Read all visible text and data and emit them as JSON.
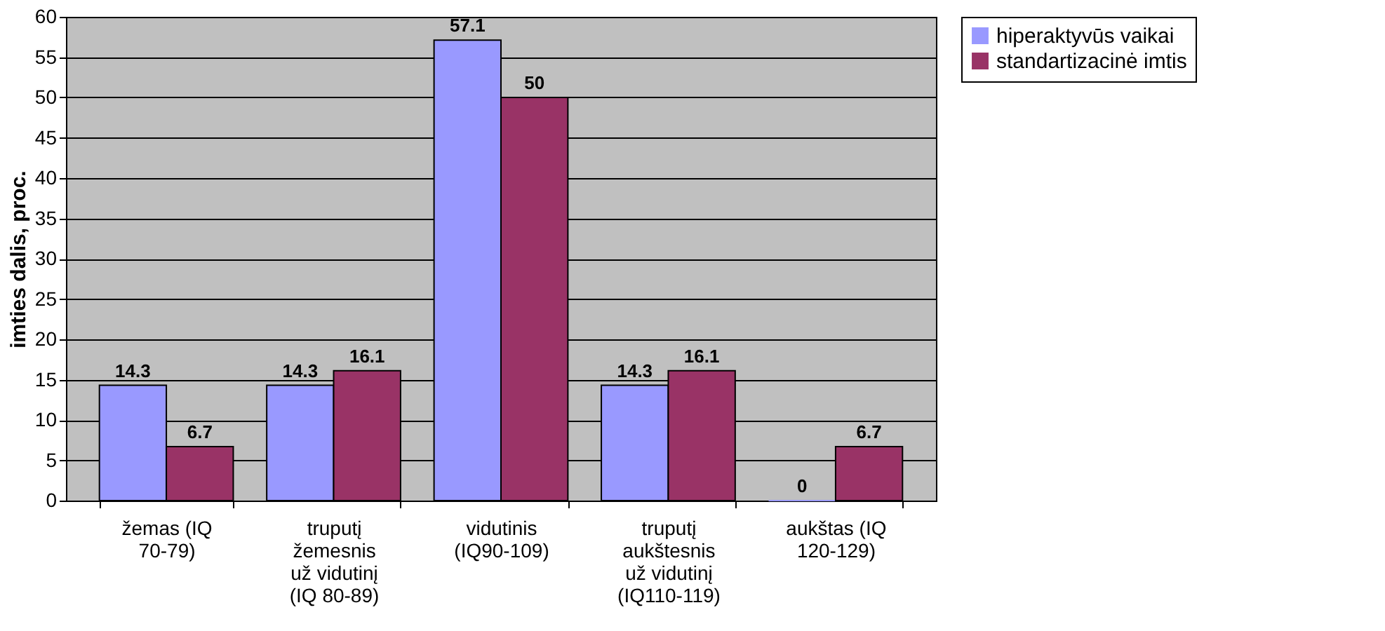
{
  "chart_data": {
    "type": "bar",
    "ylabel": "imties dalis, proc.",
    "categories": [
      "žemas (IQ\n70-79)",
      "truputį\nžemesnis\nuž vidutinį\n(IQ 80-89)",
      "vidutinis\n(IQ90-109)",
      "truputį\naukštesnis\nuž vidutinį\n(IQ110-119)",
      "aukštas (IQ\n120-129)"
    ],
    "series": [
      {
        "name": "hiperaktyvūs vaikai",
        "color": "#9999ff",
        "values": [
          14.3,
          14.3,
          57.1,
          14.3,
          0
        ]
      },
      {
        "name": "standartizacinė imtis",
        "color": "#993366",
        "values": [
          6.7,
          16.1,
          50,
          16.1,
          6.7
        ]
      }
    ],
    "ylim": [
      0,
      60
    ],
    "yticks": [
      0,
      5,
      10,
      15,
      20,
      25,
      30,
      35,
      40,
      45,
      50,
      55,
      60
    ],
    "grid": "y",
    "legend": "right",
    "data_labels": true
  }
}
